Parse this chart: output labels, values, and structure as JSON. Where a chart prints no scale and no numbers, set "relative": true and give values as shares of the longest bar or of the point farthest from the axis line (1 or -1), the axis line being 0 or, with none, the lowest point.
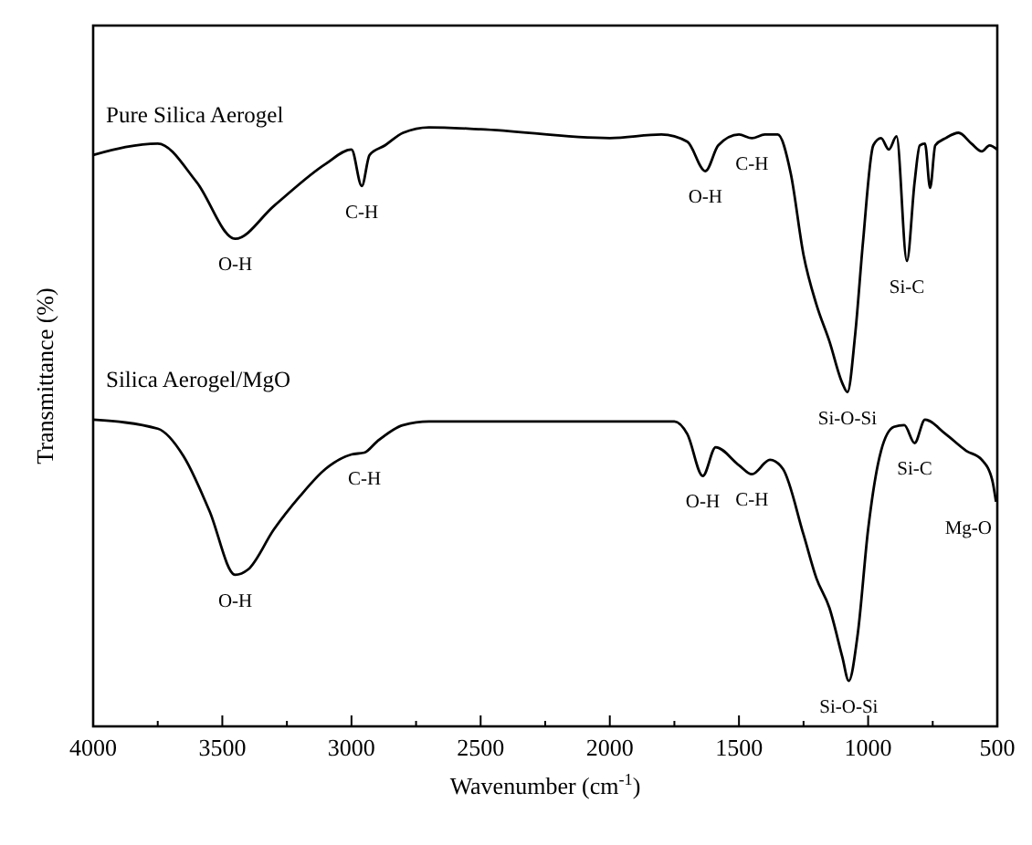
{
  "chart_data": {
    "type": "line",
    "relative": true,
    "xlabel": "Wavenumber (cm$^{-1}$)",
    "ylabel": "Transmittance (%)",
    "xlim": [
      4000,
      500
    ],
    "xticks": [
      4000,
      {
        "value": 3750,
        "label": null
      },
      3500,
      {
        "value": 3250,
        "label": null
      },
      3000,
      {
        "value": 2750,
        "label": null
      },
      2500,
      {
        "value": 2250,
        "label": null
      },
      2000,
      {
        "value": 1750,
        "label": null
      },
      1500,
      {
        "value": 1250,
        "label": null
      },
      1000,
      {
        "value": 750,
        "label": null
      },
      500
    ],
    "tick_labels": "x",
    "grid": false,
    "x": [
      4000,
      3750,
      3600,
      3450,
      3300,
      3100,
      3000,
      2960,
      2930,
      2870,
      2800,
      2700,
      2500,
      2000,
      1800,
      1700,
      1630,
      1580,
      1500,
      1450,
      1400,
      1350,
      1300,
      1250,
      1200,
      1150,
      1100,
      1080,
      1050,
      1020,
      980,
      950,
      920,
      890,
      850,
      820,
      800,
      780,
      760,
      740,
      700,
      650,
      600,
      560,
      530,
      500
    ],
    "series": [
      {
        "name": "Pure Silica Aerogel",
        "color": "#000000",
        "values": [
          0.954,
          0.973,
          0.909,
          0.814,
          0.869,
          0.939,
          0.963,
          0.902,
          0.954,
          0.97,
          0.991,
          1.0,
          0.997,
          0.982,
          0.988,
          0.976,
          0.927,
          0.97,
          0.988,
          0.982,
          0.988,
          0.988,
          0.924,
          0.787,
          0.704,
          0.643,
          0.573,
          0.558,
          0.655,
          0.808,
          0.97,
          0.982,
          0.963,
          0.985,
          0.777,
          0.909,
          0.97,
          0.973,
          0.899,
          0.97,
          0.982,
          0.991,
          0.973,
          0.96,
          0.97,
          0.963
        ]
      },
      {
        "name": "Silica Aerogel/MgO",
        "color": "#000000",
        "x": [
          4000,
          3750,
          3650,
          3550,
          3450,
          3400,
          3300,
          3200,
          3100,
          3000,
          2950,
          2900,
          2800,
          2700,
          2000,
          1750,
          1700,
          1640,
          1590,
          1500,
          1450,
          1380,
          1330,
          1250,
          1200,
          1150,
          1100,
          1075,
          1040,
          1000,
          950,
          900,
          860,
          820,
          780,
          700,
          620,
          560,
          520,
          505
        ],
        "values": [
          0.512,
          0.497,
          0.451,
          0.36,
          0.253,
          0.262,
          0.329,
          0.384,
          0.43,
          0.454,
          0.457,
          0.476,
          0.503,
          0.509,
          0.509,
          0.509,
          0.488,
          0.418,
          0.466,
          0.436,
          0.421,
          0.445,
          0.43,
          0.32,
          0.247,
          0.198,
          0.116,
          0.076,
          0.155,
          0.329,
          0.46,
          0.5,
          0.503,
          0.473,
          0.512,
          0.488,
          0.46,
          0.445,
          0.412,
          0.375
        ]
      }
    ],
    "annotations": [
      {
        "text": "O-H",
        "x": 3450,
        "y": 0.814
      },
      {
        "text": "C-H",
        "x": 2960,
        "y": 0.902
      },
      {
        "text": "O-H",
        "x": 1630,
        "y": 0.927
      },
      {
        "text": "C-H",
        "x": 1450,
        "y": 0.982
      },
      {
        "text": "Si-C",
        "x": 850,
        "y": 0.777
      },
      {
        "text": "Si-O-Si",
        "x": 1080,
        "y": 0.558
      },
      {
        "text": "O-H",
        "x": 3450,
        "y": 0.253
      },
      {
        "text": "C-H",
        "x": 2950,
        "y": 0.457
      },
      {
        "text": "O-H",
        "x": 1640,
        "y": 0.418
      },
      {
        "text": "C-H",
        "x": 1450,
        "y": 0.421
      },
      {
        "text": "Si-C",
        "x": 820,
        "y": 0.473
      },
      {
        "text": "Mg-O",
        "x": 505,
        "y": 0.375
      },
      {
        "text": "Si-O-Si",
        "x": 1075,
        "y": 0.076
      }
    ]
  }
}
